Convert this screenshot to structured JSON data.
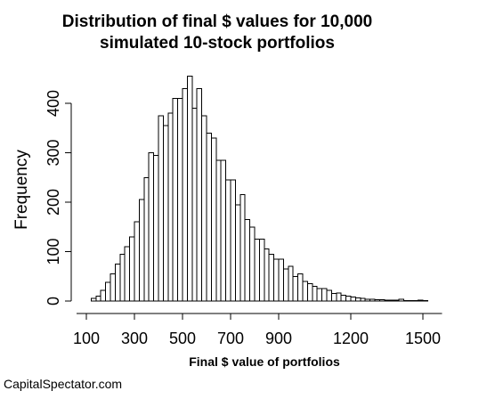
{
  "chart_data": {
    "type": "bar",
    "title_lines": [
      "Distribution of final $ values for 10,000",
      "simulated 10-stock portfolios"
    ],
    "xlabel": "Final $ value of portfolios",
    "ylabel": "Frequency",
    "xlim": [
      60,
      1580
    ],
    "ylim": [
      0,
      460
    ],
    "x_ticks": [
      100,
      300,
      500,
      700,
      900,
      1200,
      1500
    ],
    "y_ticks": [
      0,
      100,
      200,
      300,
      400
    ],
    "bin_width": 20,
    "bin_starts": [
      120,
      140,
      160,
      180,
      200,
      220,
      240,
      260,
      280,
      300,
      320,
      340,
      360,
      380,
      400,
      420,
      440,
      460,
      480,
      500,
      520,
      540,
      560,
      580,
      600,
      620,
      640,
      660,
      680,
      700,
      720,
      740,
      760,
      780,
      800,
      820,
      840,
      860,
      880,
      900,
      920,
      940,
      960,
      980,
      1000,
      1020,
      1040,
      1060,
      1080,
      1100,
      1120,
      1140,
      1160,
      1180,
      1200,
      1220,
      1240,
      1260,
      1280,
      1300,
      1320,
      1340,
      1360,
      1380,
      1400,
      1420,
      1440,
      1460,
      1480,
      1500
    ],
    "values": [
      5,
      10,
      22,
      38,
      55,
      75,
      95,
      110,
      130,
      160,
      205,
      250,
      300,
      295,
      375,
      355,
      380,
      410,
      410,
      430,
      455,
      390,
      430,
      375,
      340,
      330,
      285,
      285,
      245,
      245,
      195,
      215,
      165,
      150,
      125,
      125,
      105,
      95,
      85,
      85,
      65,
      70,
      50,
      55,
      40,
      35,
      30,
      25,
      25,
      22,
      15,
      16,
      12,
      10,
      8,
      6,
      5,
      4,
      4,
      3,
      3,
      2,
      2,
      2,
      4,
      1,
      1,
      1,
      2,
      1
    ],
    "source_text": "CapitalSpectator.com"
  }
}
